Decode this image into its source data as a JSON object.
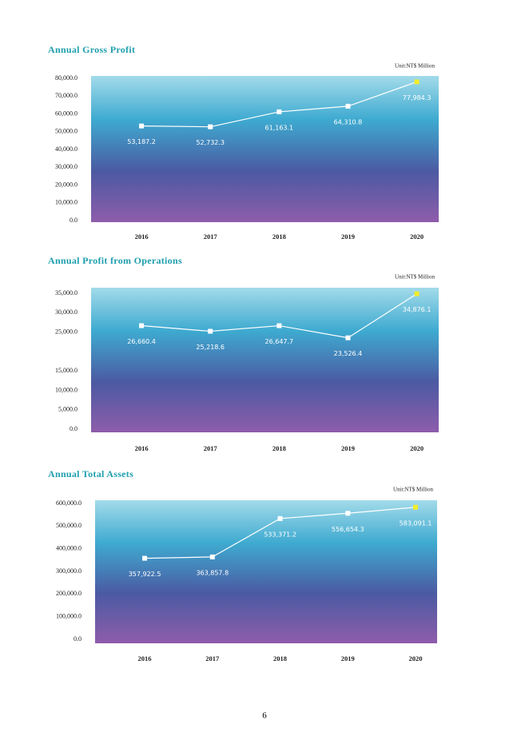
{
  "chart_data": [
    {
      "type": "line",
      "title": "Annual Gross Profit",
      "unit": "Unit:NT$ Million",
      "categories": [
        "2016",
        "2017",
        "2018",
        "2019",
        "2020"
      ],
      "values": [
        53187.2,
        52732.3,
        61163.1,
        64310.8,
        77984.3
      ],
      "value_labels": [
        "53,187.2",
        "52,732.3",
        "61,163.1",
        "64,310.8",
        "77,984.3"
      ],
      "color": "#ffffff",
      "highlight_color": "#f2ec2a",
      "ylim": [
        0,
        80000
      ],
      "yticks": [
        {
          "value": 0,
          "label": "0.0"
        },
        {
          "value": 10000,
          "label": "10,000.0"
        },
        {
          "value": 20000,
          "label": "20,000.0"
        },
        {
          "value": 30000,
          "label": "30,000.0"
        },
        {
          "value": 40000,
          "label": "40,000.0"
        },
        {
          "value": 50000,
          "label": "50,000.0"
        },
        {
          "value": 60000,
          "label": "60,000.0"
        },
        {
          "value": 70000,
          "label": "70,000.0"
        },
        {
          "value": 80000,
          "label": "80,000.0"
        }
      ]
    },
    {
      "type": "line",
      "title": "Annual Profit from Operations",
      "unit": "Unit:NT$ Million",
      "categories": [
        "2016",
        "2017",
        "2018",
        "2019",
        "2020"
      ],
      "values": [
        26660.4,
        25218.6,
        26647.7,
        23526.4,
        34876.1
      ],
      "value_labels": [
        "26,660.4",
        "25,218.6",
        "26,647.7",
        "23,526.4",
        "34,876.1"
      ],
      "color": "#ffffff",
      "highlight_color": "#f2ec2a",
      "ylim": [
        0,
        35000
      ],
      "yticks": [
        {
          "value": 0,
          "label": "0.0"
        },
        {
          "value": 5000,
          "label": "5,000.0"
        },
        {
          "value": 10000,
          "label": "10,000.0"
        },
        {
          "value": 15000,
          "label": "15,000.0"
        },
        {
          "value": 25000,
          "label": "25,000.0"
        },
        {
          "value": 30000,
          "label": "30,000.0"
        },
        {
          "value": 35000,
          "label": "35,000.0"
        }
      ]
    },
    {
      "type": "line",
      "title": "Annual Total Assets",
      "unit": "Unit:NT$ Million",
      "categories": [
        "2016",
        "2017",
        "2018",
        "2019",
        "2020"
      ],
      "values": [
        357922.5,
        363857.8,
        533371.2,
        556654.3,
        583091.1
      ],
      "value_labels": [
        "357,922.5",
        "363,857.8",
        "533,371.2",
        "556,654.3",
        "583,091.1"
      ],
      "color": "#ffffff",
      "highlight_color": "#f2ec2a",
      "ylim": [
        0,
        600000
      ],
      "yticks": [
        {
          "value": 0,
          "label": "0.0"
        },
        {
          "value": 100000,
          "label": "100,000.0"
        },
        {
          "value": 200000,
          "label": "200,000.0"
        },
        {
          "value": 300000,
          "label": "300,000.0"
        },
        {
          "value": 400000,
          "label": "400,000.0"
        },
        {
          "value": 500000,
          "label": "500,000.0"
        },
        {
          "value": 600000,
          "label": "600,000.0"
        }
      ]
    }
  ],
  "page_number": "6"
}
